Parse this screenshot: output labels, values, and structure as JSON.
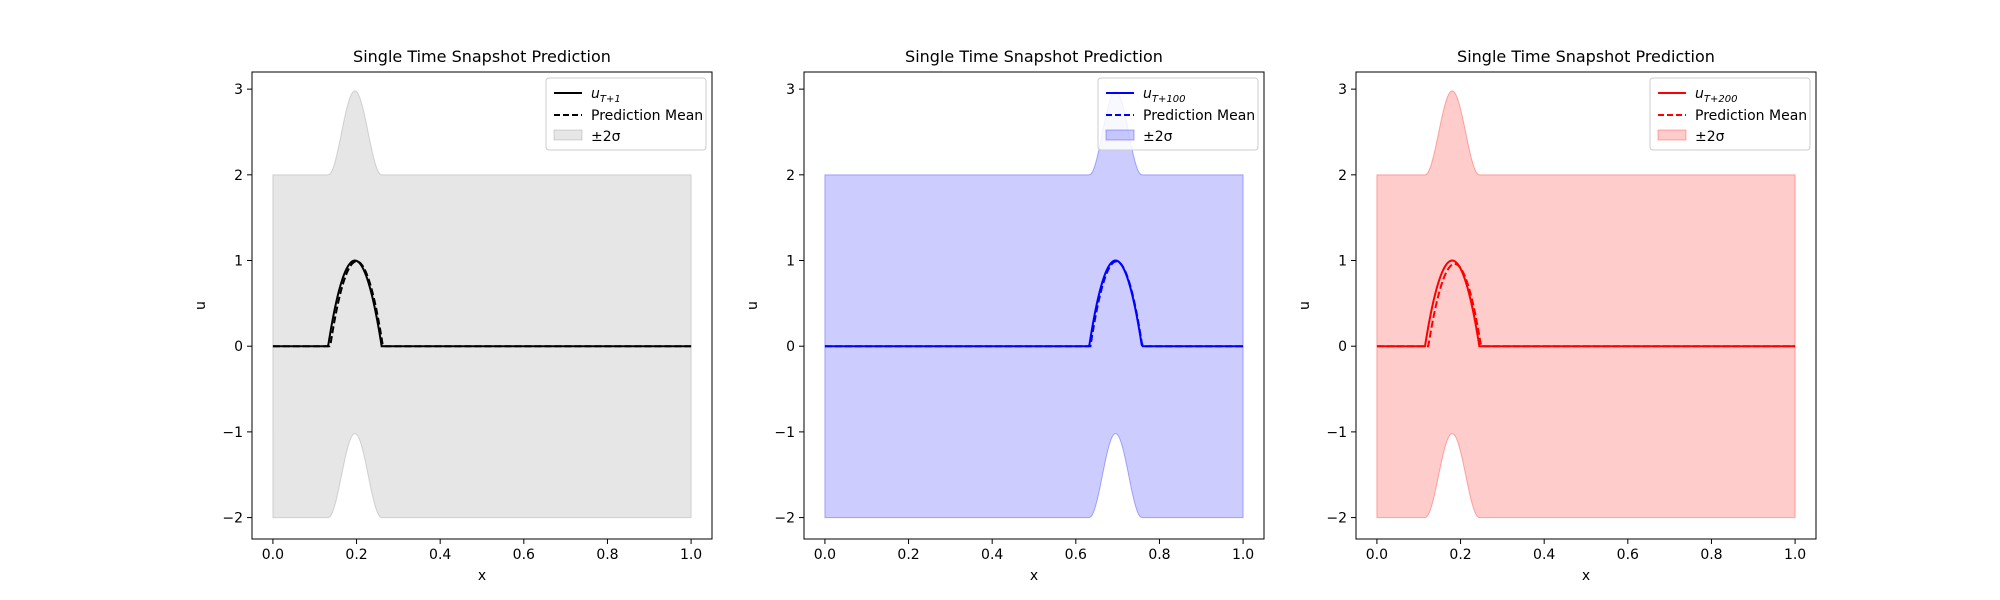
{
  "chart_data": [
    {
      "type": "line",
      "title": "Single Time Snapshot Prediction",
      "xlabel": "x",
      "ylabel": "u",
      "xlim": [
        -0.05,
        1.05
      ],
      "ylim": [
        -2.25,
        3.2
      ],
      "xticks": [
        0.0,
        0.2,
        0.4,
        0.6,
        0.8,
        1.0
      ],
      "xtick_labels": [
        "0.0",
        "0.2",
        "0.4",
        "0.6",
        "0.8",
        "1.0"
      ],
      "yticks": [
        -2,
        -1,
        0,
        1,
        2,
        3
      ],
      "ytick_labels": [
        "−2",
        "−1",
        "0",
        "1",
        "2",
        "3"
      ],
      "grid": false,
      "legend_position": "top-right",
      "color": "#000000",
      "band_color": "#808080",
      "truth": {
        "name_base": "u",
        "name_sub": "T+1",
        "peak_x": 0.196,
        "halfwidth": 0.064,
        "amplitude": 1.0
      },
      "mean": {
        "name": "Prediction Mean",
        "peak_x": 0.2,
        "halfwidth": 0.063,
        "amplitude": 0.99
      },
      "band": {
        "name": "±2σ",
        "sigma_label": "±2σ",
        "base_half_width": 2.0,
        "bump_extra": 0.98,
        "x_range": [
          0.0,
          1.0
        ]
      }
    },
    {
      "type": "line",
      "title": "Single Time Snapshot Prediction",
      "xlabel": "x",
      "ylabel": "u",
      "xlim": [
        -0.05,
        1.05
      ],
      "ylim": [
        -2.25,
        3.2
      ],
      "xticks": [
        0.0,
        0.2,
        0.4,
        0.6,
        0.8,
        1.0
      ],
      "xtick_labels": [
        "0.0",
        "0.2",
        "0.4",
        "0.6",
        "0.8",
        "1.0"
      ],
      "yticks": [
        -2,
        -1,
        0,
        1,
        2,
        3
      ],
      "ytick_labels": [
        "−2",
        "−1",
        "0",
        "1",
        "2",
        "3"
      ],
      "grid": false,
      "legend_position": "top-right",
      "color": "#0000ff",
      "band_color": "#0000ff",
      "truth": {
        "name_base": "u",
        "name_sub": "T+100",
        "peak_x": 0.695,
        "halfwidth": 0.063,
        "amplitude": 1.0
      },
      "mean": {
        "name": "Prediction Mean",
        "peak_x": 0.697,
        "halfwidth": 0.062,
        "amplitude": 0.99
      },
      "band": {
        "name": "±2σ",
        "sigma_label": "±2σ",
        "base_half_width": 2.0,
        "bump_extra": 0.98,
        "x_range": [
          0.0,
          1.0
        ]
      }
    },
    {
      "type": "line",
      "title": "Single Time Snapshot Prediction",
      "xlabel": "x",
      "ylabel": "u",
      "xlim": [
        -0.05,
        1.05
      ],
      "ylim": [
        -2.25,
        3.2
      ],
      "xticks": [
        0.0,
        0.2,
        0.4,
        0.6,
        0.8,
        1.0
      ],
      "xtick_labels": [
        "0.0",
        "0.2",
        "0.4",
        "0.6",
        "0.8",
        "1.0"
      ],
      "yticks": [
        -2,
        -1,
        0,
        1,
        2,
        3
      ],
      "ytick_labels": [
        "−2",
        "−1",
        "0",
        "1",
        "2",
        "3"
      ],
      "grid": false,
      "legend_position": "top-right",
      "color": "#ff0000",
      "band_color": "#ff0000",
      "truth": {
        "name_base": "u",
        "name_sub": "T+200",
        "peak_x": 0.18,
        "halfwidth": 0.065,
        "amplitude": 1.0
      },
      "mean": {
        "name": "Prediction Mean",
        "peak_x": 0.186,
        "halfwidth": 0.063,
        "amplitude": 0.96
      },
      "band": {
        "name": "±2σ",
        "sigma_label": "±2σ",
        "base_half_width": 2.0,
        "bump_extra": 0.98,
        "x_range": [
          0.0,
          1.0
        ]
      }
    }
  ]
}
